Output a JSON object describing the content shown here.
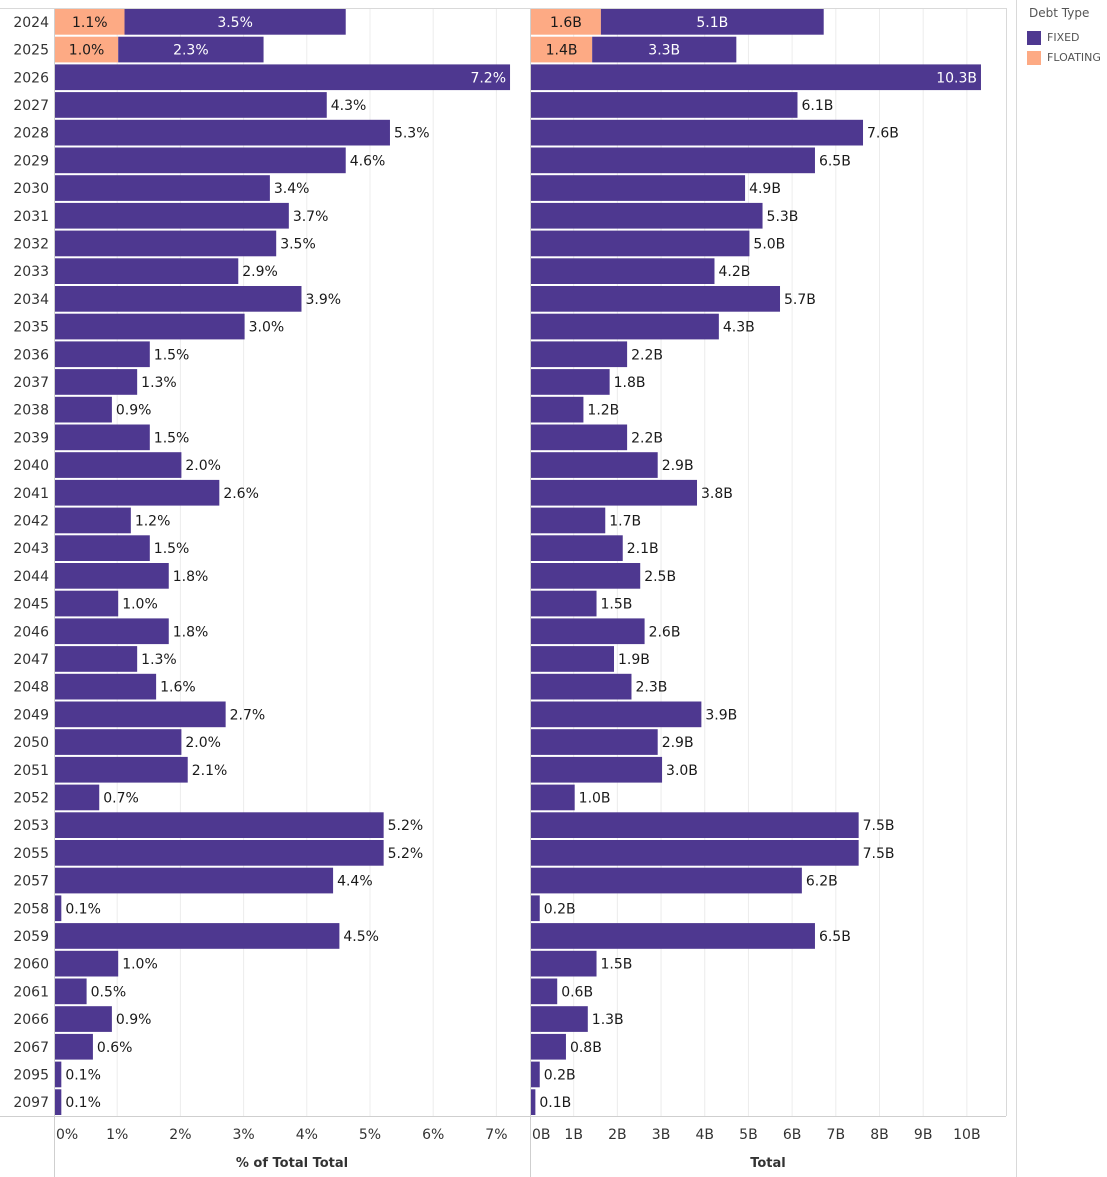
{
  "chart_data": {
    "type": "bar",
    "orientation": "horizontal",
    "stacked": true,
    "categories": [
      "2024",
      "2025",
      "2026",
      "2027",
      "2028",
      "2029",
      "2030",
      "2031",
      "2032",
      "2033",
      "2034",
      "2035",
      "2036",
      "2037",
      "2038",
      "2039",
      "2040",
      "2041",
      "2042",
      "2043",
      "2044",
      "2045",
      "2046",
      "2047",
      "2048",
      "2049",
      "2050",
      "2051",
      "2052",
      "2053",
      "2055",
      "2057",
      "2058",
      "2059",
      "2060",
      "2061",
      "2066",
      "2067",
      "2095",
      "2097"
    ],
    "panels": [
      {
        "id": "pct",
        "xlabel": "% of Total Total",
        "xlim": [
          0,
          7.5
        ],
        "ticks": [
          0,
          1,
          2,
          3,
          4,
          5,
          6,
          7
        ],
        "tick_labels": [
          "0%",
          "1%",
          "2%",
          "3%",
          "4%",
          "5%",
          "6%",
          "7%"
        ],
        "series": [
          {
            "name": "FLOATING",
            "values": [
              1.1,
              1.0,
              0,
              0,
              0,
              0,
              0,
              0,
              0,
              0,
              0,
              0,
              0,
              0,
              0,
              0,
              0,
              0,
              0,
              0,
              0,
              0,
              0,
              0,
              0,
              0,
              0,
              0,
              0,
              0,
              0,
              0,
              0,
              0,
              0,
              0,
              0,
              0,
              0,
              0
            ],
            "labels": [
              "1.1%",
              "1.0%",
              "",
              "",
              "",
              "",
              "",
              "",
              "",
              "",
              "",
              "",
              "",
              "",
              "",
              "",
              "",
              "",
              "",
              "",
              "",
              "",
              "",
              "",
              "",
              "",
              "",
              "",
              "",
              "",
              "",
              "",
              "",
              "",
              "",
              "",
              "",
              "",
              "",
              ""
            ]
          },
          {
            "name": "FIXED",
            "values": [
              3.5,
              2.3,
              7.2,
              4.3,
              5.3,
              4.6,
              3.4,
              3.7,
              3.5,
              2.9,
              3.9,
              3.0,
              1.5,
              1.3,
              0.9,
              1.5,
              2.0,
              2.6,
              1.2,
              1.5,
              1.8,
              1.0,
              1.8,
              1.3,
              1.6,
              2.7,
              2.0,
              2.1,
              0.7,
              5.2,
              5.2,
              4.4,
              0.1,
              4.5,
              1.0,
              0.5,
              0.9,
              0.6,
              0.1,
              0.1
            ],
            "labels": [
              "3.5%",
              "2.3%",
              "7.2%",
              "4.3%",
              "5.3%",
              "4.6%",
              "3.4%",
              "3.7%",
              "3.5%",
              "2.9%",
              "3.9%",
              "3.0%",
              "1.5%",
              "1.3%",
              "0.9%",
              "1.5%",
              "2.0%",
              "2.6%",
              "1.2%",
              "1.5%",
              "1.8%",
              "1.0%",
              "1.8%",
              "1.3%",
              "1.6%",
              "2.7%",
              "2.0%",
              "2.1%",
              "0.7%",
              "5.2%",
              "5.2%",
              "4.4%",
              "0.1%",
              "4.5%",
              "1.0%",
              "0.5%",
              "0.9%",
              "0.6%",
              "0.1%",
              "0.1%"
            ]
          }
        ]
      },
      {
        "id": "total",
        "xlabel": "Total",
        "xlim": [
          0,
          10.85
        ],
        "ticks": [
          0,
          1,
          2,
          3,
          4,
          5,
          6,
          7,
          8,
          9,
          10
        ],
        "tick_labels": [
          "0B",
          "1B",
          "2B",
          "3B",
          "4B",
          "5B",
          "6B",
          "7B",
          "8B",
          "9B",
          "10B"
        ],
        "series": [
          {
            "name": "FLOATING",
            "values": [
              1.6,
              1.4,
              0,
              0,
              0,
              0,
              0,
              0,
              0,
              0,
              0,
              0,
              0,
              0,
              0,
              0,
              0,
              0,
              0,
              0,
              0,
              0,
              0,
              0,
              0,
              0,
              0,
              0,
              0,
              0,
              0,
              0,
              0,
              0,
              0,
              0,
              0,
              0,
              0,
              0
            ],
            "labels": [
              "1.6B",
              "1.4B",
              "",
              "",
              "",
              "",
              "",
              "",
              "",
              "",
              "",
              "",
              "",
              "",
              "",
              "",
              "",
              "",
              "",
              "",
              "",
              "",
              "",
              "",
              "",
              "",
              "",
              "",
              "",
              "",
              "",
              "",
              "",
              "",
              "",
              "",
              "",
              "",
              "",
              ""
            ]
          },
          {
            "name": "FIXED",
            "values": [
              5.1,
              3.3,
              10.3,
              6.1,
              7.6,
              6.5,
              4.9,
              5.3,
              5.0,
              4.2,
              5.7,
              4.3,
              2.2,
              1.8,
              1.2,
              2.2,
              2.9,
              3.8,
              1.7,
              2.1,
              2.5,
              1.5,
              2.6,
              1.9,
              2.3,
              3.9,
              2.9,
              3.0,
              1.0,
              7.5,
              7.5,
              6.2,
              0.2,
              6.5,
              1.5,
              0.6,
              1.3,
              0.8,
              0.2,
              0.1
            ],
            "labels": [
              "5.1B",
              "3.3B",
              "10.3B",
              "6.1B",
              "7.6B",
              "6.5B",
              "4.9B",
              "5.3B",
              "5.0B",
              "4.2B",
              "5.7B",
              "4.3B",
              "2.2B",
              "1.8B",
              "1.2B",
              "2.2B",
              "2.9B",
              "3.8B",
              "1.7B",
              "2.1B",
              "2.5B",
              "1.5B",
              "2.6B",
              "1.9B",
              "2.3B",
              "3.9B",
              "2.9B",
              "3.0B",
              "1.0B",
              "7.5B",
              "7.5B",
              "6.2B",
              "0.2B",
              "6.5B",
              "1.5B",
              "0.6B",
              "1.3B",
              "0.8B",
              "0.2B",
              "0.1B"
            ]
          }
        ]
      }
    ],
    "legend": {
      "title": "Debt Type",
      "position": "right",
      "items": [
        {
          "label": "FIXED",
          "color": "#4e3890"
        },
        {
          "label": "FLOATING",
          "color": "#fdaa84"
        }
      ]
    },
    "grid": true
  }
}
